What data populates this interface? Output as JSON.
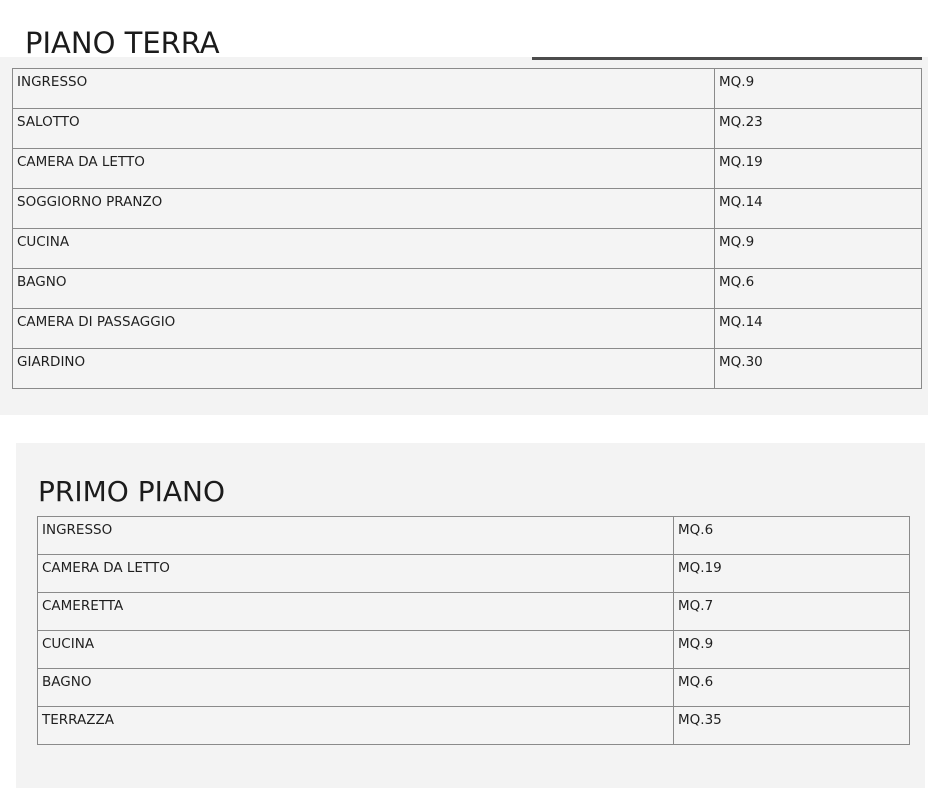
{
  "theme": {
    "page_background": "#ffffff",
    "panel_background": "#f3f3f3",
    "table_outer_border": "#5f5f5f",
    "table_inner_border": "#8a8a8a",
    "text_color": "#1f1f1f",
    "crop_line_color": "#4c4c4c"
  },
  "sections": [
    {
      "title": "PIANO TERRA",
      "rows": [
        {
          "name": "INGRESSO",
          "area": "MQ.9"
        },
        {
          "name": "SALOTTO",
          "area": "MQ.23"
        },
        {
          "name": "CAMERA DA LETTO",
          "area": "MQ.19"
        },
        {
          "name": "SOGGIORNO PRANZO",
          "area": "MQ.14"
        },
        {
          "name": "CUCINA",
          "area": "MQ.9"
        },
        {
          "name": "BAGNO",
          "area": "MQ.6"
        },
        {
          "name": "CAMERA DI PASSAGGIO",
          "area": "MQ.14"
        },
        {
          "name": "GIARDINO",
          "area": "MQ.30"
        }
      ]
    },
    {
      "title": "PRIMO PIANO",
      "rows": [
        {
          "name": "INGRESSO",
          "area": "MQ.6"
        },
        {
          "name": "CAMERA DA LETTO",
          "area": "MQ.19"
        },
        {
          "name": "CAMERETTA",
          "area": "MQ.7"
        },
        {
          "name": "CUCINA",
          "area": "MQ.9"
        },
        {
          "name": "BAGNO",
          "area": "MQ.6"
        },
        {
          "name": "TERRAZZA",
          "area": "MQ.35"
        }
      ]
    }
  ]
}
